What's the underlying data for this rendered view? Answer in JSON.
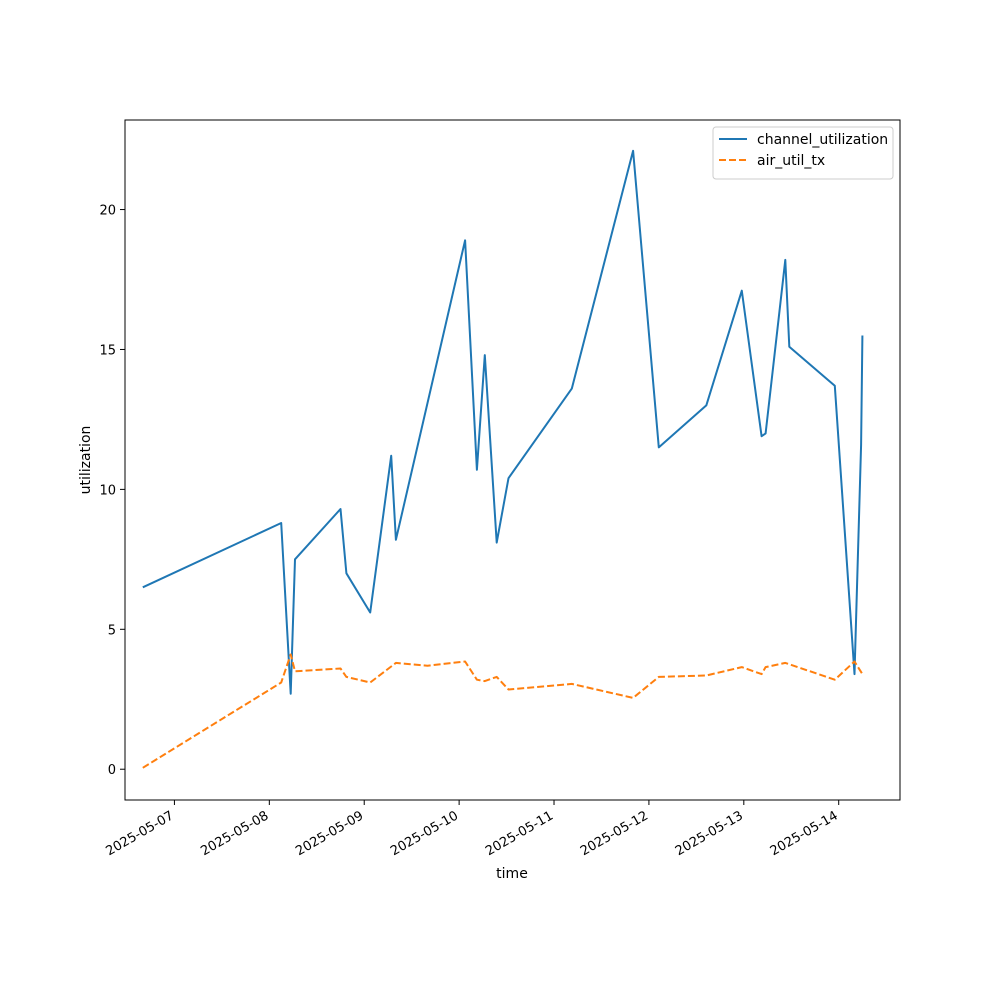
{
  "chart_data": {
    "type": "line",
    "title": "",
    "xlabel": "time",
    "ylabel": "utilization",
    "x_axis_type": "date",
    "xlim": [
      "2025-05-06T11:30",
      "2025-05-14T15:30"
    ],
    "ylim": [
      -1.1,
      23.2
    ],
    "x_ticks": [
      "2025-05-07",
      "2025-05-08",
      "2025-05-09",
      "2025-05-10",
      "2025-05-11",
      "2025-05-12",
      "2025-05-13",
      "2025-05-14"
    ],
    "y_ticks": [
      0,
      5,
      10,
      15,
      20
    ],
    "grid": false,
    "legend_position": "top-right",
    "series": [
      {
        "name": "channel_utilization",
        "color": "#1f77b4",
        "dash": "solid",
        "points": [
          [
            "2025-05-06T16:00",
            6.5
          ],
          [
            "2025-05-08T03:00",
            8.8
          ],
          [
            "2025-05-08T05:25",
            2.7
          ],
          [
            "2025-05-08T06:30",
            7.5
          ],
          [
            "2025-05-08T18:00",
            9.3
          ],
          [
            "2025-05-08T19:30",
            7.0
          ],
          [
            "2025-05-09T01:30",
            5.6
          ],
          [
            "2025-05-09T06:50",
            11.2
          ],
          [
            "2025-05-09T08:00",
            8.2
          ],
          [
            "2025-05-10T01:30",
            18.9
          ],
          [
            "2025-05-10T04:30",
            10.7
          ],
          [
            "2025-05-10T06:30",
            14.8
          ],
          [
            "2025-05-10T09:30",
            8.1
          ],
          [
            "2025-05-10T12:30",
            10.4
          ],
          [
            "2025-05-11T04:30",
            13.6
          ],
          [
            "2025-05-11T20:00",
            22.1
          ],
          [
            "2025-05-12T02:30",
            11.5
          ],
          [
            "2025-05-12T14:30",
            13.0
          ],
          [
            "2025-05-12T23:30",
            17.1
          ],
          [
            "2025-05-13T04:30",
            11.9
          ],
          [
            "2025-05-13T05:30",
            12.0
          ],
          [
            "2025-05-13T10:30",
            18.2
          ],
          [
            "2025-05-13T11:30",
            15.1
          ],
          [
            "2025-05-13T23:00",
            13.7
          ],
          [
            "2025-05-14T04:00",
            3.4
          ],
          [
            "2025-05-14T05:40",
            11.6
          ],
          [
            "2025-05-14T06:00",
            15.5
          ]
        ]
      },
      {
        "name": "air_util_tx",
        "color": "#ff7f0e",
        "dash": "dashed",
        "points": [
          [
            "2025-05-06T16:00",
            0.05
          ],
          [
            "2025-05-08T03:00",
            3.1
          ],
          [
            "2025-05-08T05:25",
            4.1
          ],
          [
            "2025-05-08T06:30",
            3.5
          ],
          [
            "2025-05-08T18:00",
            3.6
          ],
          [
            "2025-05-08T19:30",
            3.3
          ],
          [
            "2025-05-09T01:30",
            3.1
          ],
          [
            "2025-05-09T08:00",
            3.8
          ],
          [
            "2025-05-09T16:00",
            3.7
          ],
          [
            "2025-05-10T01:30",
            3.85
          ],
          [
            "2025-05-10T04:30",
            3.2
          ],
          [
            "2025-05-10T06:30",
            3.15
          ],
          [
            "2025-05-10T09:30",
            3.3
          ],
          [
            "2025-05-10T12:30",
            2.85
          ],
          [
            "2025-05-11T04:30",
            3.05
          ],
          [
            "2025-05-11T20:00",
            2.55
          ],
          [
            "2025-05-12T02:30",
            3.3
          ],
          [
            "2025-05-12T14:30",
            3.35
          ],
          [
            "2025-05-12T23:30",
            3.65
          ],
          [
            "2025-05-13T04:30",
            3.4
          ],
          [
            "2025-05-13T05:30",
            3.65
          ],
          [
            "2025-05-13T10:30",
            3.8
          ],
          [
            "2025-05-13T23:00",
            3.2
          ],
          [
            "2025-05-14T04:00",
            3.85
          ],
          [
            "2025-05-14T06:00",
            3.4
          ]
        ]
      }
    ]
  }
}
